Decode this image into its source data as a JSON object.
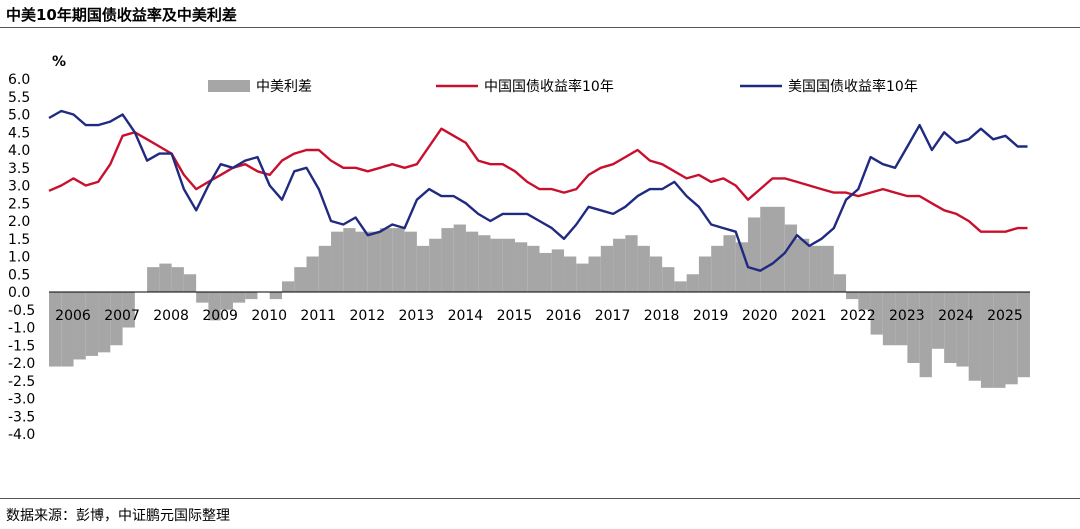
{
  "title": "中美10年期国债收益率及中美利差",
  "source": "数据来源：彭博，中证鹏元国际整理",
  "chart_data": {
    "type": "line",
    "yunit": "%",
    "ylim": [
      -4.0,
      6.0
    ],
    "yticks": [
      "6.0",
      "5.5",
      "5.0",
      "4.5",
      "4.0",
      "3.5",
      "3.0",
      "2.5",
      "2.0",
      "1.5",
      "1.0",
      "0.5",
      "0.0",
      "-0.5",
      "-1.0",
      "-1.5",
      "-2.0",
      "-2.5",
      "-3.0",
      "-3.5",
      "-4.0"
    ],
    "xlim": [
      2006.0,
      2026.0
    ],
    "x_ticks": [
      "2006",
      "2007",
      "2008",
      "2009",
      "2010",
      "2011",
      "2012",
      "2013",
      "2014",
      "2015",
      "2016",
      "2017",
      "2018",
      "2019",
      "2020",
      "2021",
      "2022",
      "2023",
      "2024",
      "2025"
    ],
    "legend": {
      "placement": "top"
    },
    "colors": {
      "spread": "#a6a6a6",
      "cn": "#c8102e",
      "us": "#1f2a80"
    },
    "series": [
      {
        "name": "中美利差",
        "kind": "bar",
        "x": [
          2006.0,
          2006.25,
          2006.5,
          2006.75,
          2007.0,
          2007.25,
          2007.5,
          2007.75,
          2008.0,
          2008.25,
          2008.5,
          2008.75,
          2009.0,
          2009.25,
          2009.5,
          2009.75,
          2010.0,
          2010.25,
          2010.5,
          2010.75,
          2011.0,
          2011.25,
          2011.5,
          2011.75,
          2012.0,
          2012.25,
          2012.5,
          2012.75,
          2013.0,
          2013.25,
          2013.5,
          2013.75,
          2014.0,
          2014.25,
          2014.5,
          2014.75,
          2015.0,
          2015.25,
          2015.5,
          2015.75,
          2016.0,
          2016.25,
          2016.5,
          2016.75,
          2017.0,
          2017.25,
          2017.5,
          2017.75,
          2018.0,
          2018.25,
          2018.5,
          2018.75,
          2019.0,
          2019.25,
          2019.5,
          2019.75,
          2020.0,
          2020.25,
          2020.5,
          2020.75,
          2021.0,
          2021.25,
          2021.5,
          2021.75,
          2022.0,
          2022.25,
          2022.5,
          2022.75,
          2023.0,
          2023.25,
          2023.5,
          2023.75,
          2024.0,
          2024.25,
          2024.5,
          2024.75,
          2025.0,
          2025.25,
          2025.5,
          2025.75
        ],
        "values": [
          -2.1,
          -2.1,
          -1.9,
          -1.8,
          -1.7,
          -1.5,
          -1.0,
          0.0,
          0.7,
          0.8,
          0.7,
          0.5,
          -0.3,
          -0.8,
          -0.5,
          -0.3,
          -0.2,
          0.0,
          -0.2,
          0.3,
          0.7,
          1.0,
          1.3,
          1.7,
          1.8,
          1.7,
          1.7,
          1.8,
          1.8,
          1.7,
          1.3,
          1.5,
          1.8,
          1.9,
          1.7,
          1.6,
          1.5,
          1.5,
          1.4,
          1.3,
          1.1,
          1.2,
          1.0,
          0.8,
          1.0,
          1.3,
          1.5,
          1.6,
          1.3,
          1.0,
          0.7,
          0.3,
          0.5,
          1.0,
          1.3,
          1.6,
          1.4,
          2.1,
          2.4,
          2.4,
          1.9,
          1.5,
          1.3,
          1.3,
          0.5,
          -0.2,
          -0.5,
          -1.2,
          -1.5,
          -1.5,
          -2.0,
          -2.4,
          -1.6,
          -2.0,
          -2.1,
          -2.5,
          -2.7,
          -2.7,
          -2.6,
          -2.4
        ]
      },
      {
        "name": "中国国债收益率10年",
        "kind": "line",
        "x": [
          2006.0,
          2006.25,
          2006.5,
          2006.75,
          2007.0,
          2007.25,
          2007.5,
          2007.75,
          2008.0,
          2008.25,
          2008.5,
          2008.75,
          2009.0,
          2009.25,
          2009.5,
          2009.75,
          2010.0,
          2010.25,
          2010.5,
          2010.75,
          2011.0,
          2011.25,
          2011.5,
          2011.75,
          2012.0,
          2012.25,
          2012.5,
          2012.75,
          2013.0,
          2013.25,
          2013.5,
          2013.75,
          2014.0,
          2014.25,
          2014.5,
          2014.75,
          2015.0,
          2015.25,
          2015.5,
          2015.75,
          2016.0,
          2016.25,
          2016.5,
          2016.75,
          2017.0,
          2017.25,
          2017.5,
          2017.75,
          2018.0,
          2018.25,
          2018.5,
          2018.75,
          2019.0,
          2019.25,
          2019.5,
          2019.75,
          2020.0,
          2020.25,
          2020.5,
          2020.75,
          2021.0,
          2021.25,
          2021.5,
          2021.75,
          2022.0,
          2022.25,
          2022.5,
          2022.75,
          2023.0,
          2023.25,
          2023.5,
          2023.75,
          2024.0,
          2024.25,
          2024.5,
          2024.75,
          2025.0,
          2025.25,
          2025.5,
          2025.75,
          2025.95
        ],
        "values": [
          2.85,
          3.0,
          3.2,
          3.0,
          3.1,
          3.6,
          4.4,
          4.5,
          4.3,
          4.1,
          3.9,
          3.3,
          2.9,
          3.1,
          3.3,
          3.5,
          3.6,
          3.4,
          3.3,
          3.7,
          3.9,
          4.0,
          4.0,
          3.7,
          3.5,
          3.5,
          3.4,
          3.5,
          3.6,
          3.5,
          3.6,
          4.1,
          4.6,
          4.4,
          4.2,
          3.7,
          3.6,
          3.6,
          3.4,
          3.1,
          2.9,
          2.9,
          2.8,
          2.9,
          3.3,
          3.5,
          3.6,
          3.8,
          4.0,
          3.7,
          3.6,
          3.4,
          3.2,
          3.3,
          3.1,
          3.2,
          3.0,
          2.6,
          2.9,
          3.2,
          3.2,
          3.1,
          3.0,
          2.9,
          2.8,
          2.8,
          2.7,
          2.8,
          2.9,
          2.8,
          2.7,
          2.7,
          2.5,
          2.3,
          2.2,
          2.0,
          1.7,
          1.7,
          1.7,
          1.8,
          1.8
        ]
      },
      {
        "name": "美国国债收益率10年",
        "kind": "line",
        "x": [
          2006.0,
          2006.25,
          2006.5,
          2006.75,
          2007.0,
          2007.25,
          2007.5,
          2007.75,
          2008.0,
          2008.25,
          2008.5,
          2008.75,
          2009.0,
          2009.25,
          2009.5,
          2009.75,
          2010.0,
          2010.25,
          2010.5,
          2010.75,
          2011.0,
          2011.25,
          2011.5,
          2011.75,
          2012.0,
          2012.25,
          2012.5,
          2012.75,
          2013.0,
          2013.25,
          2013.5,
          2013.75,
          2014.0,
          2014.25,
          2014.5,
          2014.75,
          2015.0,
          2015.25,
          2015.5,
          2015.75,
          2016.0,
          2016.25,
          2016.5,
          2016.75,
          2017.0,
          2017.25,
          2017.5,
          2017.75,
          2018.0,
          2018.25,
          2018.5,
          2018.75,
          2019.0,
          2019.25,
          2019.5,
          2019.75,
          2020.0,
          2020.25,
          2020.5,
          2020.75,
          2021.0,
          2021.25,
          2021.5,
          2021.75,
          2022.0,
          2022.25,
          2022.5,
          2022.75,
          2023.0,
          2023.25,
          2023.5,
          2023.75,
          2024.0,
          2024.25,
          2024.5,
          2024.75,
          2025.0,
          2025.25,
          2025.5,
          2025.75,
          2025.95
        ],
        "values": [
          4.9,
          5.1,
          5.0,
          4.7,
          4.7,
          4.8,
          5.0,
          4.5,
          3.7,
          3.9,
          3.9,
          2.9,
          2.3,
          3.0,
          3.6,
          3.5,
          3.7,
          3.8,
          3.0,
          2.6,
          3.4,
          3.5,
          2.9,
          2.0,
          1.9,
          2.1,
          1.6,
          1.7,
          1.9,
          1.8,
          2.6,
          2.9,
          2.7,
          2.7,
          2.5,
          2.2,
          2.0,
          2.2,
          2.2,
          2.2,
          2.0,
          1.8,
          1.5,
          1.9,
          2.4,
          2.3,
          2.2,
          2.4,
          2.7,
          2.9,
          2.9,
          3.1,
          2.7,
          2.4,
          1.9,
          1.8,
          1.7,
          0.7,
          0.6,
          0.8,
          1.1,
          1.6,
          1.3,
          1.5,
          1.8,
          2.6,
          2.9,
          3.8,
          3.6,
          3.5,
          4.1,
          4.7,
          4.0,
          4.5,
          4.2,
          4.3,
          4.6,
          4.3,
          4.4,
          4.1,
          4.1
        ]
      }
    ]
  }
}
